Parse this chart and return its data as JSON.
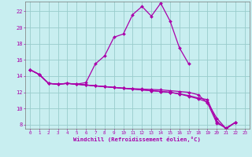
{
  "xlabel": "Windchill (Refroidissement éolien,°C)",
  "background_color": "#c8eef0",
  "line_color": "#aa00aa",
  "grid_color": "#99cccc",
  "xlim": [
    -0.5,
    23.5
  ],
  "ylim": [
    7.5,
    23.2
  ],
  "xticks": [
    0,
    1,
    2,
    3,
    4,
    5,
    6,
    7,
    8,
    9,
    10,
    11,
    12,
    13,
    14,
    15,
    16,
    17,
    18,
    19,
    20,
    21,
    22,
    23
  ],
  "yticks": [
    8,
    10,
    12,
    14,
    16,
    18,
    20,
    22
  ],
  "series": [
    [
      14.8,
      14.2,
      13.1,
      13.0,
      13.1,
      13.0,
      13.2,
      15.5,
      16.5,
      18.8,
      19.2,
      21.6,
      22.6,
      21.4,
      23.0,
      20.8,
      17.5,
      15.5,
      null,
      null,
      null,
      null,
      null,
      null
    ],
    [
      14.8,
      14.2,
      13.1,
      13.0,
      13.1,
      13.0,
      12.9,
      12.8,
      12.7,
      12.6,
      12.5,
      12.45,
      12.4,
      12.35,
      12.3,
      12.2,
      12.1,
      12.0,
      11.7,
      10.7,
      8.2,
      7.6,
      8.3,
      null
    ],
    [
      14.8,
      14.2,
      13.1,
      13.0,
      13.1,
      13.0,
      12.9,
      12.8,
      12.7,
      12.6,
      12.5,
      12.4,
      12.3,
      12.2,
      12.1,
      12.0,
      11.8,
      11.6,
      11.3,
      11.1,
      8.4,
      7.5,
      8.3,
      null
    ],
    [
      14.8,
      14.2,
      13.1,
      13.0,
      13.1,
      13.0,
      12.9,
      12.8,
      12.7,
      12.6,
      12.5,
      12.4,
      12.3,
      12.2,
      12.1,
      12.0,
      11.8,
      11.5,
      11.2,
      10.8,
      8.8,
      7.5,
      8.3,
      null
    ]
  ]
}
